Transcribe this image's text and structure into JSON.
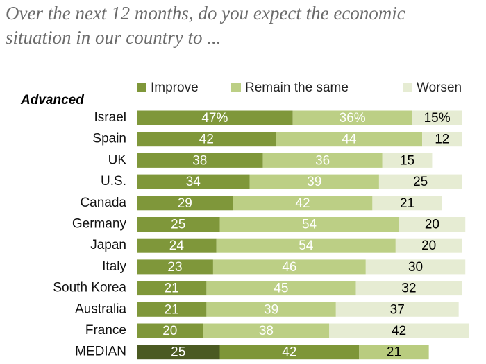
{
  "chart_data": {
    "type": "stacked-bar-horizontal",
    "title": "Over the next 12 months, do you expect the economic situation in our country to ...",
    "group_label": "Advanced",
    "categories": [
      "Israel",
      "Spain",
      "UK",
      "U.S.",
      "Canada",
      "Germany",
      "Japan",
      "Italy",
      "South Korea",
      "Australia",
      "France",
      "MEDIAN"
    ],
    "series": [
      {
        "name": "Improve",
        "color": "#7f973a",
        "label_color": "#ffffff",
        "values": [
          47,
          42,
          38,
          34,
          29,
          25,
          24,
          23,
          21,
          21,
          20,
          25
        ],
        "value_labels": [
          "47%",
          "42",
          "38",
          "34",
          "29",
          "25",
          "24",
          "23",
          "21",
          "21",
          "20",
          "25"
        ]
      },
      {
        "name": "Remain the same",
        "color": "#bccf85",
        "label_color": "#ffffff",
        "values": [
          36,
          44,
          36,
          39,
          42,
          54,
          54,
          46,
          45,
          39,
          38,
          42
        ],
        "value_labels": [
          "36%",
          "44",
          "36",
          "39",
          "42",
          "54",
          "54",
          "46",
          "45",
          "39",
          "38",
          "42"
        ]
      },
      {
        "name": "Worsen",
        "color": "#e6ecd3",
        "label_color": "#000000",
        "values": [
          15,
          12,
          15,
          25,
          21,
          20,
          20,
          30,
          32,
          37,
          42,
          21
        ],
        "value_labels": [
          "15%",
          "12",
          "15",
          "25",
          "21",
          "20",
          "20",
          "30",
          "32",
          "37",
          "42",
          "21"
        ]
      }
    ],
    "highlight_index": 11,
    "highlight_colors": [
      "#4b5a22",
      "#7e9638",
      "#b9cc7f"
    ]
  }
}
